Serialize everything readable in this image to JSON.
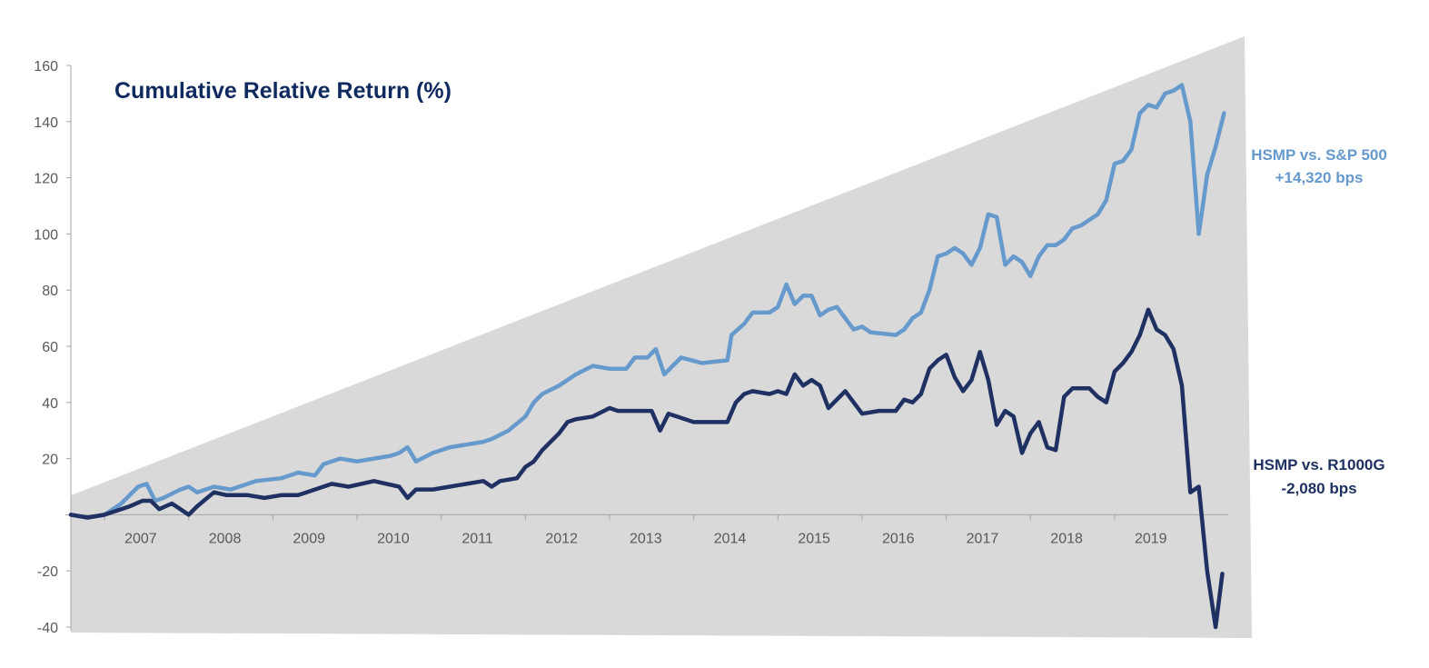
{
  "chart_data": {
    "type": "line",
    "title": "Cumulative Relative Return (%)",
    "xlabel": "",
    "ylabel": "",
    "ylim": [
      -40,
      160
    ],
    "yticks": [
      -40,
      -20,
      20,
      40,
      60,
      80,
      100,
      120,
      140,
      160
    ],
    "xlim": [
      2006.1,
      2019.85
    ],
    "xticks": [
      2007,
      2008,
      2009,
      2010,
      2011,
      2012,
      2013,
      2014,
      2015,
      2016,
      2017,
      2018,
      2019
    ],
    "grid": false,
    "legend": "none",
    "annotations": [
      {
        "line1": "HSMP vs. S&P 500",
        "line2": "+14,320 bps",
        "color": "#6699cc"
      },
      {
        "line1": "HSMP vs. R1000G",
        "line2": "-2,080 bps",
        "color": "#1f3162"
      }
    ],
    "series": [
      {
        "color": "#6699cc",
        "x": [
          2006.1,
          2006.3,
          2006.5,
          2006.7,
          2006.9,
          2007.0,
          2007.1,
          2007.2,
          2007.4,
          2007.5,
          2007.6,
          2007.8,
          2008.0,
          2008.3,
          2008.6,
          2008.8,
          2009.0,
          2009.1,
          2009.3,
          2009.5,
          2009.7,
          2009.9,
          2010.0,
          2010.1,
          2010.2,
          2010.4,
          2010.6,
          2010.8,
          2011.0,
          2011.1,
          2011.3,
          2011.5,
          2011.6,
          2011.7,
          2011.9,
          2012.0,
          2012.1,
          2012.3,
          2012.5,
          2012.7,
          2012.8,
          2012.95,
          2013.05,
          2013.15,
          2013.35,
          2013.6,
          2013.9,
          2013.95,
          2014.1,
          2014.2,
          2014.4,
          2014.5,
          2014.6,
          2014.7,
          2014.8,
          2014.9,
          2015.0,
          2015.1,
          2015.2,
          2015.3,
          2015.4,
          2015.5,
          2015.6,
          2015.9,
          2016.0,
          2016.1,
          2016.2,
          2016.3,
          2016.4,
          2016.5,
          2016.6,
          2016.7,
          2016.8,
          2016.9,
          2017.0,
          2017.1,
          2017.2,
          2017.3,
          2017.4,
          2017.5,
          2017.6,
          2017.7,
          2017.8,
          2017.9,
          2018.0,
          2018.1,
          2018.2,
          2018.3,
          2018.4,
          2018.5,
          2018.6,
          2018.7,
          2018.8,
          2018.9,
          2019.0,
          2019.1,
          2019.2,
          2019.3,
          2019.4,
          2019.5,
          2019.6,
          2019.7,
          2019.8
        ],
        "values": [
          0,
          -1,
          0,
          4,
          10,
          11,
          5,
          6,
          9,
          10,
          8,
          10,
          9,
          12,
          13,
          15,
          14,
          18,
          20,
          19,
          20,
          21,
          22,
          24,
          19,
          22,
          24,
          25,
          26,
          27,
          30,
          35,
          40,
          43,
          46,
          48,
          50,
          53,
          52,
          52,
          56,
          56,
          59,
          50,
          56,
          54,
          55,
          64,
          68,
          72,
          72,
          74,
          82,
          75,
          78,
          78,
          71,
          73,
          74,
          70,
          66,
          67,
          65,
          64,
          66,
          70,
          72,
          80,
          92,
          93,
          95,
          93,
          89,
          95,
          107,
          106,
          89,
          92,
          90,
          85,
          92,
          96,
          96,
          98,
          102,
          103,
          105,
          107,
          112,
          125,
          126,
          130,
          143,
          146,
          145,
          150,
          151,
          153,
          140,
          100,
          121,
          131,
          143
        ]
      },
      {
        "color": "#1f3162",
        "x": [
          2006.1,
          2006.3,
          2006.5,
          2006.6,
          2006.8,
          2006.95,
          2007.05,
          2007.15,
          2007.3,
          2007.45,
          2007.5,
          2007.6,
          2007.8,
          2007.95,
          2008.2,
          2008.4,
          2008.6,
          2008.8,
          2008.9,
          2009.0,
          2009.2,
          2009.4,
          2009.7,
          2010.0,
          2010.1,
          2010.2,
          2010.4,
          2010.6,
          2010.8,
          2011.0,
          2011.1,
          2011.2,
          2011.4,
          2011.5,
          2011.6,
          2011.7,
          2011.9,
          2012.0,
          2012.1,
          2012.3,
          2012.5,
          2012.6,
          2012.8,
          2013.0,
          2013.1,
          2013.2,
          2013.3,
          2013.5,
          2013.7,
          2013.9,
          2014.0,
          2014.1,
          2014.2,
          2014.4,
          2014.5,
          2014.6,
          2014.7,
          2014.8,
          2014.9,
          2015.0,
          2015.1,
          2015.3,
          2015.5,
          2015.7,
          2015.9,
          2016.0,
          2016.1,
          2016.2,
          2016.3,
          2016.4,
          2016.5,
          2016.6,
          2016.7,
          2016.8,
          2016.9,
          2017.0,
          2017.1,
          2017.2,
          2017.3,
          2017.4,
          2017.5,
          2017.6,
          2017.7,
          2017.8,
          2017.9,
          2018.0,
          2018.2,
          2018.3,
          2018.4,
          2018.5,
          2018.6,
          2018.7,
          2018.8,
          2018.9,
          2019.0,
          2019.1,
          2019.2,
          2019.3,
          2019.4,
          2019.5,
          2019.6,
          2019.7,
          2019.78
        ],
        "values": [
          0,
          -1,
          0,
          1,
          3,
          5,
          5,
          2,
          4,
          1,
          0,
          3,
          8,
          7,
          7,
          6,
          7,
          7,
          8,
          9,
          11,
          10,
          12,
          10,
          6,
          9,
          9,
          10,
          11,
          12,
          10,
          12,
          13,
          17,
          19,
          23,
          29,
          33,
          34,
          35,
          38,
          37,
          37,
          37,
          30,
          36,
          35,
          33,
          33,
          33,
          40,
          43,
          44,
          43,
          44,
          43,
          50,
          46,
          48,
          46,
          38,
          44,
          36,
          37,
          37,
          41,
          40,
          43,
          52,
          55,
          57,
          49,
          44,
          48,
          58,
          48,
          32,
          37,
          35,
          22,
          29,
          33,
          24,
          23,
          42,
          45,
          45,
          42,
          40,
          51,
          54,
          58,
          64,
          73,
          66,
          64,
          59,
          46,
          8,
          10,
          -20,
          -40,
          -21
        ]
      }
    ]
  }
}
